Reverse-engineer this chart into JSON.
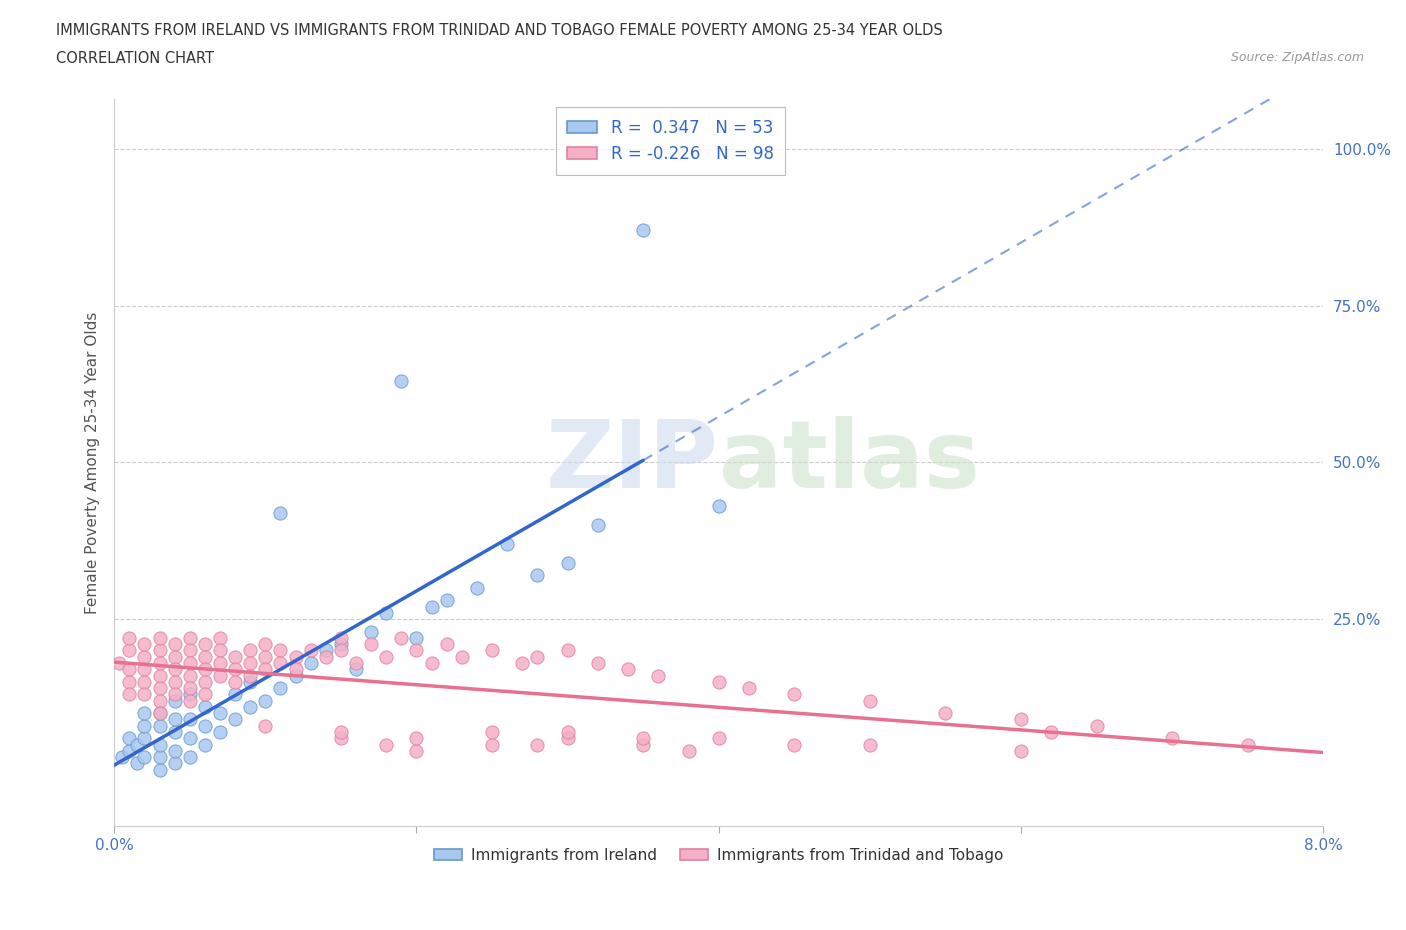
{
  "title_line1": "IMMIGRANTS FROM IRELAND VS IMMIGRANTS FROM TRINIDAD AND TOBAGO FEMALE POVERTY AMONG 25-34 YEAR OLDS",
  "title_line2": "CORRELATION CHART",
  "source_text": "Source: ZipAtlas.com",
  "ylabel": "Female Poverty Among 25-34 Year Olds",
  "xlim": [
    0.0,
    0.08
  ],
  "ylim": [
    -0.08,
    1.08
  ],
  "ireland_R": 0.347,
  "ireland_N": 53,
  "tt_R": -0.226,
  "tt_N": 98,
  "ireland_scatter_color": "#a8c8f0",
  "ireland_edge_color": "#6699cc",
  "tt_scatter_color": "#f5b0c5",
  "tt_edge_color": "#e080a0",
  "ireland_trend_color": "#3366cc",
  "tt_trend_color": "#e87090",
  "watermark_color": "#dde8f5",
  "background_color": "#ffffff",
  "grid_color": "#cccccc",
  "ireland_x": [
    0.0005,
    0.001,
    0.001,
    0.0015,
    0.0015,
    0.002,
    0.002,
    0.002,
    0.002,
    0.003,
    0.003,
    0.003,
    0.003,
    0.003,
    0.004,
    0.004,
    0.004,
    0.004,
    0.004,
    0.005,
    0.005,
    0.005,
    0.005,
    0.006,
    0.006,
    0.006,
    0.007,
    0.007,
    0.008,
    0.008,
    0.009,
    0.009,
    0.01,
    0.011,
    0.011,
    0.012,
    0.013,
    0.014,
    0.015,
    0.016,
    0.017,
    0.018,
    0.019,
    0.02,
    0.021,
    0.022,
    0.024,
    0.026,
    0.028,
    0.03,
    0.032,
    0.035,
    0.04
  ],
  "ireland_y": [
    0.03,
    0.04,
    0.06,
    0.02,
    0.05,
    0.03,
    0.06,
    0.08,
    0.1,
    0.01,
    0.03,
    0.05,
    0.08,
    0.1,
    0.02,
    0.04,
    0.07,
    0.09,
    0.12,
    0.03,
    0.06,
    0.09,
    0.13,
    0.05,
    0.08,
    0.11,
    0.07,
    0.1,
    0.09,
    0.13,
    0.11,
    0.15,
    0.12,
    0.14,
    0.42,
    0.16,
    0.18,
    0.2,
    0.21,
    0.17,
    0.23,
    0.26,
    0.63,
    0.22,
    0.27,
    0.28,
    0.3,
    0.37,
    0.32,
    0.34,
    0.4,
    0.87,
    0.43
  ],
  "tt_x": [
    0.0003,
    0.001,
    0.001,
    0.001,
    0.001,
    0.001,
    0.002,
    0.002,
    0.002,
    0.002,
    0.002,
    0.003,
    0.003,
    0.003,
    0.003,
    0.003,
    0.003,
    0.003,
    0.004,
    0.004,
    0.004,
    0.004,
    0.004,
    0.005,
    0.005,
    0.005,
    0.005,
    0.005,
    0.005,
    0.006,
    0.006,
    0.006,
    0.006,
    0.006,
    0.007,
    0.007,
    0.007,
    0.007,
    0.008,
    0.008,
    0.008,
    0.009,
    0.009,
    0.009,
    0.01,
    0.01,
    0.01,
    0.011,
    0.011,
    0.012,
    0.012,
    0.013,
    0.014,
    0.015,
    0.015,
    0.016,
    0.017,
    0.018,
    0.019,
    0.02,
    0.021,
    0.022,
    0.023,
    0.025,
    0.027,
    0.028,
    0.03,
    0.032,
    0.034,
    0.036,
    0.04,
    0.042,
    0.045,
    0.05,
    0.055,
    0.06,
    0.062,
    0.065,
    0.07,
    0.075,
    0.015,
    0.018,
    0.02,
    0.025,
    0.028,
    0.03,
    0.035,
    0.038,
    0.04,
    0.045,
    0.01,
    0.015,
    0.02,
    0.025,
    0.03,
    0.035,
    0.05,
    0.06
  ],
  "tt_y": [
    0.18,
    0.2,
    0.22,
    0.17,
    0.15,
    0.13,
    0.19,
    0.21,
    0.17,
    0.15,
    0.13,
    0.2,
    0.22,
    0.18,
    0.16,
    0.14,
    0.12,
    0.1,
    0.21,
    0.19,
    0.17,
    0.15,
    0.13,
    0.22,
    0.2,
    0.18,
    0.16,
    0.14,
    0.12,
    0.21,
    0.19,
    0.17,
    0.15,
    0.13,
    0.22,
    0.2,
    0.18,
    0.16,
    0.19,
    0.17,
    0.15,
    0.2,
    0.18,
    0.16,
    0.21,
    0.19,
    0.17,
    0.2,
    0.18,
    0.19,
    0.17,
    0.2,
    0.19,
    0.22,
    0.2,
    0.18,
    0.21,
    0.19,
    0.22,
    0.2,
    0.18,
    0.21,
    0.19,
    0.2,
    0.18,
    0.19,
    0.2,
    0.18,
    0.17,
    0.16,
    0.15,
    0.14,
    0.13,
    0.12,
    0.1,
    0.09,
    0.07,
    0.08,
    0.06,
    0.05,
    0.06,
    0.05,
    0.04,
    0.07,
    0.05,
    0.06,
    0.05,
    0.04,
    0.06,
    0.05,
    0.08,
    0.07,
    0.06,
    0.05,
    0.07,
    0.06,
    0.05,
    0.04
  ],
  "ireland_trend_x": [
    0.0,
    0.035
  ],
  "ireland_trend_solid_end": 0.035,
  "ireland_trend_dash_start": 0.035,
  "ireland_trend_dash_end": 0.08
}
